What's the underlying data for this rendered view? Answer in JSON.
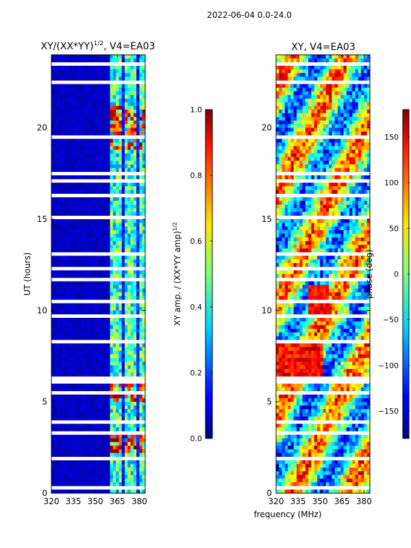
{
  "figure": {
    "suptitle": "2022-06-04 0.0-24.0",
    "shared_xlabel": "frequency (MHz)"
  },
  "chart_data": [
    {
      "type": "heatmap",
      "title_main": "XY/(XX*YY)",
      "title_sup": "1/2",
      "title_rest": ", V4=EA03",
      "xlabel": "",
      "ylabel": "UT (hours)",
      "xlim": [
        320,
        384
      ],
      "ylim": [
        0,
        24
      ],
      "xticks": [
        320,
        335,
        350,
        365,
        380
      ],
      "yticks": [
        0,
        5,
        10,
        15,
        20
      ],
      "colorbar": {
        "label_main": "XY amp. / (XX*YY amp)",
        "label_sup": "1/2",
        "range": [
          0.0,
          1.0
        ],
        "ticks": [
          "0.0",
          "0.2",
          "0.4",
          "0.6",
          "0.8",
          "1.0"
        ],
        "colormap": "jet"
      },
      "description_bands": [
        {
          "x_from": 320,
          "x_to": 361,
          "level": 0.05
        },
        {
          "x_from": 361,
          "x_to": 384,
          "level": 0.45
        }
      ],
      "high_value_intervals_ut": [
        [
          18.8,
          21.2
        ],
        [
          5.0,
          6.1
        ],
        [
          2.3,
          3.3
        ]
      ]
    },
    {
      "type": "heatmap",
      "title": "XY, V4=EA03",
      "xlabel": "frequency (MHz)",
      "ylabel": "",
      "xlim": [
        320,
        384
      ],
      "ylim": [
        0,
        24
      ],
      "xticks": [
        320,
        335,
        350,
        365,
        380
      ],
      "yticks": [
        0,
        5,
        10,
        15,
        20
      ],
      "colorbar": {
        "label": "phase (deg)",
        "range": [
          -180,
          180
        ],
        "ticks": [
          "150",
          "100",
          "50",
          "0",
          "−50",
          "−100",
          "−150"
        ],
        "colormap": "jet"
      },
      "gaps_ut": [
        0.3,
        0.6,
        1.0,
        1.4,
        1.9,
        2.6,
        3.3,
        3.9,
        4.2,
        4.6,
        5.5,
        6.1,
        6.3,
        6.6,
        7.6,
        8.0,
        8.3,
        8.6,
        9.0,
        9.4,
        9.7,
        10.5,
        11.0,
        11.7,
        12.3,
        13.1,
        13.6,
        14.2,
        14.8,
        15.1,
        15.8,
        16.3,
        16.8,
        17.1,
        17.5,
        18.0,
        18.4,
        19.5,
        21.0,
        21.4,
        22.5,
        23.0,
        23.5
      ]
    }
  ]
}
